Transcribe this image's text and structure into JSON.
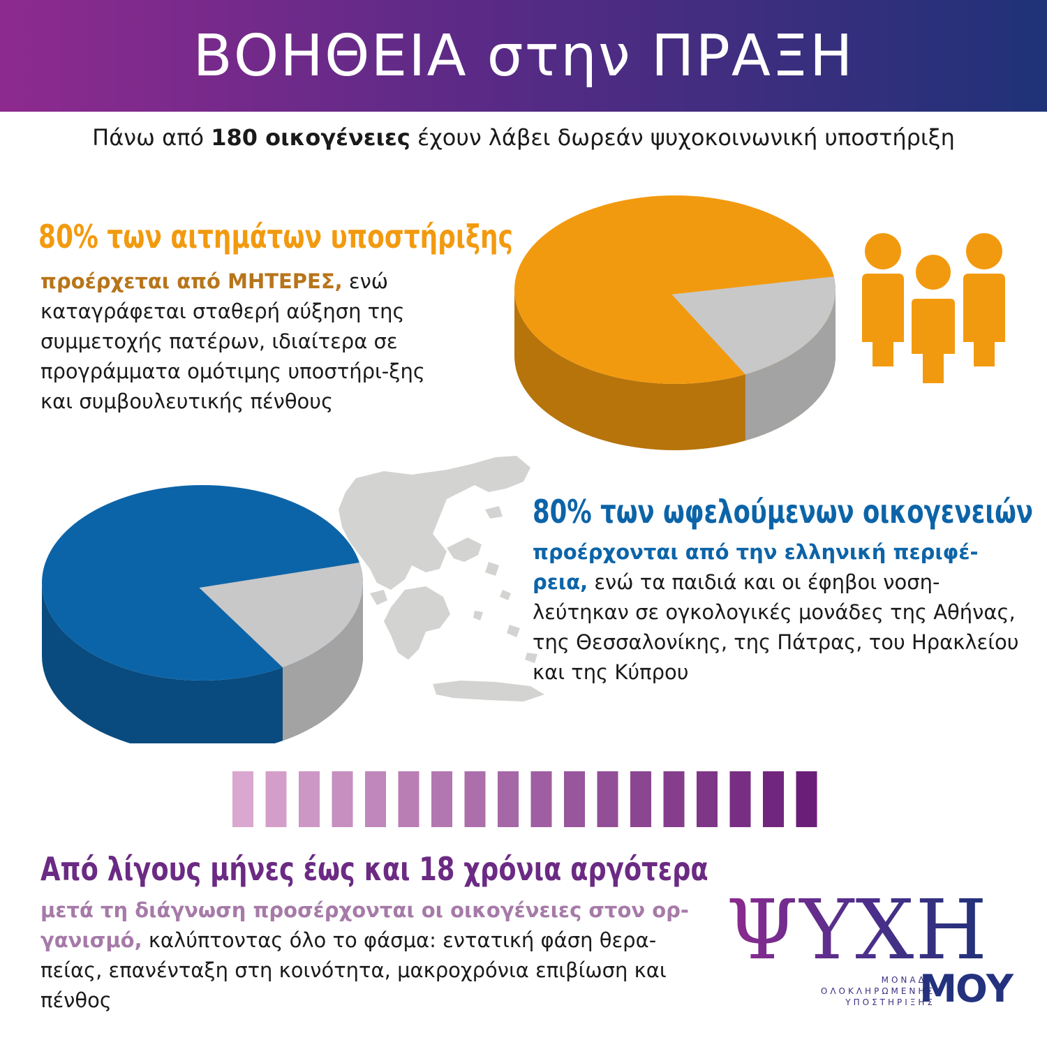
{
  "header": {
    "title": "ΒΟΗΘΕΙΑ στην ΠΡΑΞΗ"
  },
  "subtitle": {
    "pre": "Πάνω από ",
    "bold": "180 οικογένειες",
    "post": " έχουν λάβει δωρεάν ψυχοκοινωνική υποστήριξη"
  },
  "mothers": {
    "headline": "80% των αιτημάτων υποστήριξης",
    "lead": "προέρχεται από ΜΗΤΕΡΕΣ,",
    "body": " ενώ καταγράφεται σταθερή αύξηση της συμμετοχής πατέρων, ιδιαίτερα σε προγράμματα ομότιμης υποστήρι-ξης και συμβουλευτικής πένθους",
    "pie_percent": 80,
    "color": "#f29a0f",
    "icon": "people-group-icon"
  },
  "regions": {
    "headline": "80% των ωφελούμενων οικογενειών",
    "lead": "προέρχονται από την ελληνική περιφέ-ρεια,",
    "body": " ενώ τα παιδιά και οι έφηβοι νοση-λεύτηκαν σε ογκολογικές μονάδες της Αθήνας, της Θεσσαλονίκης, της Πάτρας, του Ηρακλείου και της Κύπρου",
    "pie_percent": 80,
    "color": "#0c64a8",
    "icon": "greece-map-icon"
  },
  "timeline": {
    "headline": "Από λίγους μήνες έως και 18 χρόνια αργότερα",
    "lead": "μετά τη διάγνωση προσέρχονται οι οικογένειες στον ορ-γανισμό,",
    "body": " καλύπτοντας όλο το φάσμα: εντατική φάση θερα-πείας, επανένταξη στη κοινότητα, μακροχρόνια επιβίωση και πένθος",
    "color": "#6b2a83"
  },
  "logo": {
    "main": "ΨΥΧΗ",
    "line1": "ΜΟΝΑΔΑ",
    "line2": "ΟΛΟΚΛΗΡΩΜΕΝΗΣ",
    "line3": "ΥΠΟΣΤΗΡΙΞΗΣ",
    "moy": "ΜΟΥ"
  }
}
